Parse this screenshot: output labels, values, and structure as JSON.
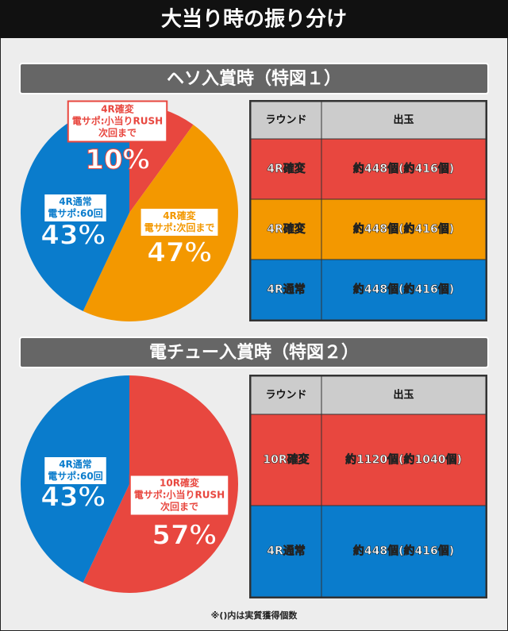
{
  "title": "大当り時の振り分け",
  "chart_data": [
    {
      "type": "pie",
      "title": "ヘソ入賞時（特図１）",
      "categories": [
        [
          "4R確変",
          "電サポ:小当りRUSH",
          "次回まで"
        ],
        [
          "4R確変",
          "電サポ:次回まで"
        ],
        [
          "4R通常",
          "電サポ:60回"
        ]
      ],
      "values": [
        10,
        47,
        43
      ],
      "value_labels": [
        "10%",
        "47%",
        "43%"
      ],
      "colors": [
        "#e8473f",
        "#f39800",
        "#0a7ccc"
      ],
      "table": {
        "header": [
          "ラウンド",
          "出玉"
        ],
        "rows": [
          [
            "4R確変",
            "約448個(約416個)"
          ],
          [
            "4R確変",
            "約448個(約416個)"
          ],
          [
            "4R通常",
            "約448個(約416個)"
          ]
        ]
      }
    },
    {
      "type": "pie",
      "title": "電チュー入賞時（特図２）",
      "categories": [
        [
          "10R確変",
          "電サポ:小当りRUSH",
          "次回まで"
        ],
        [
          "4R通常",
          "電サポ:60回"
        ]
      ],
      "values": [
        57,
        43
      ],
      "value_labels": [
        "57%",
        "43%"
      ],
      "colors": [
        "#e8473f",
        "#0a7ccc"
      ],
      "table": {
        "header": [
          "ラウンド",
          "出玉"
        ],
        "rows": [
          [
            "10R確変",
            "約1120個(約1040個)"
          ],
          [
            "4R通常",
            "約448個(約416個)"
          ]
        ]
      }
    }
  ],
  "footnote": "※()内は実質獲得個数"
}
